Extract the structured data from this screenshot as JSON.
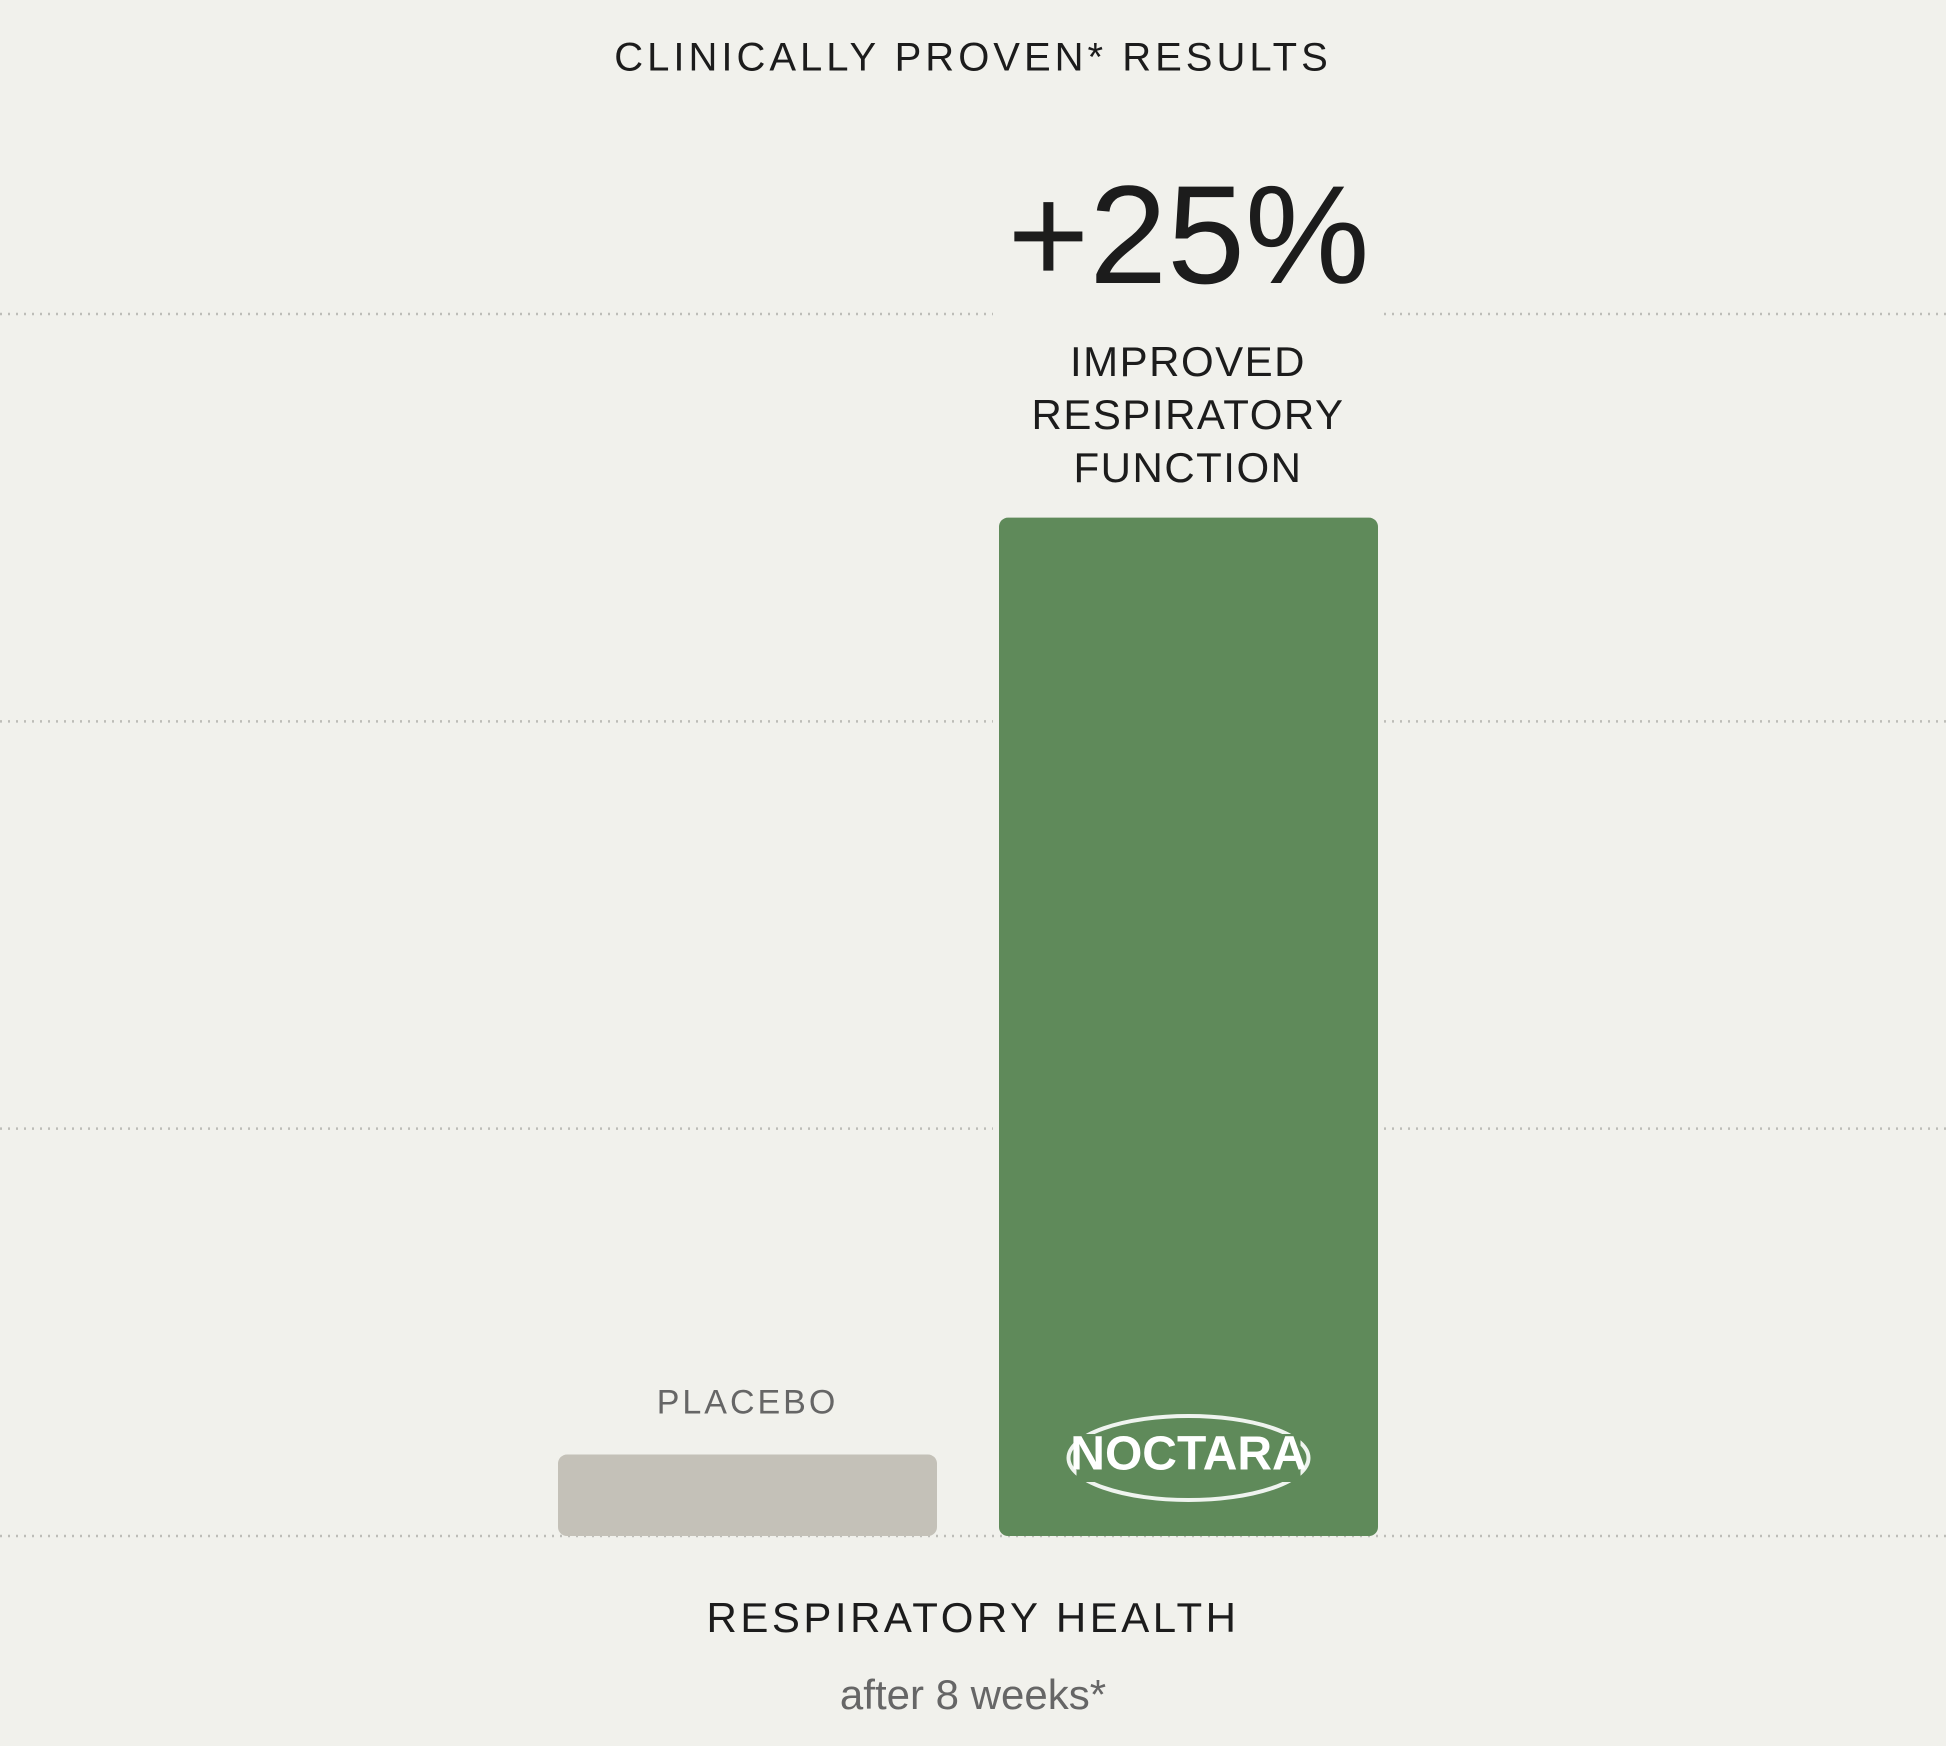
{
  "chart_data": {
    "type": "bar",
    "title": "CLINICALLY PROVEN* RESULTS",
    "categories": [
      "PLACEBO",
      "NOCTARA"
    ],
    "values": [
      2,
      25
    ],
    "value_labels": [
      null,
      "+25%"
    ],
    "colors": [
      "#c4c1b8",
      "#5f8a5a"
    ],
    "annotation": [
      "IMPROVED",
      "RESPIRATORY",
      "FUNCTION"
    ],
    "x_label": "RESPIRATORY HEALTH",
    "subtitle": "after 8 weeks*",
    "ylim": [
      0,
      30
    ],
    "yticks": [
      0,
      10,
      20,
      30
    ],
    "grid": true
  }
}
